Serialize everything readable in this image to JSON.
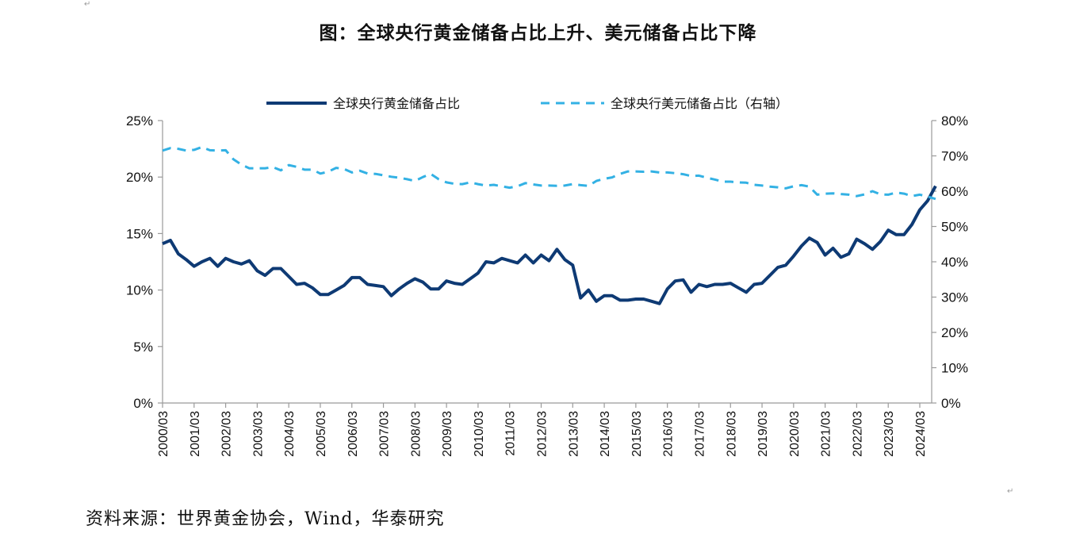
{
  "title": "图：全球央行黄金储备占比上升、美元储备占比下降",
  "source": "资料来源：世界黄金协会，Wind，华泰研究",
  "colors": {
    "gold_line": "#0e3a74",
    "usd_line": "#33b1e4",
    "axis": "#9a9a9a",
    "text": "#111111"
  },
  "chart_data": {
    "type": "line",
    "title": "",
    "xlabel": "",
    "ylabel": "",
    "ylabel_right": "",
    "x_tick_labels": [
      "2000/03",
      "2001/03",
      "2002/03",
      "2003/03",
      "2004/03",
      "2005/03",
      "2006/03",
      "2007/03",
      "2008/03",
      "2009/03",
      "2010/03",
      "2011/03",
      "2012/03",
      "2013/03",
      "2014/03",
      "2015/03",
      "2016/03",
      "2017/03",
      "2018/03",
      "2019/03",
      "2020/03",
      "2021/03",
      "2022/03",
      "2023/03",
      "2024/03"
    ],
    "y_left": {
      "ylim": [
        0,
        25
      ],
      "ticks": [
        "0%",
        "5%",
        "10%",
        "15%",
        "20%",
        "25%"
      ]
    },
    "y_right": {
      "ylim": [
        0,
        80
      ],
      "ticks": [
        "0%",
        "10%",
        "20%",
        "30%",
        "40%",
        "50%",
        "60%",
        "70%",
        "80%"
      ]
    },
    "grid": false,
    "legend_position": "top-center",
    "series": [
      {
        "name": "全球央行黄金储备占比",
        "axis": "left",
        "style": "solid",
        "x_start": "2000/03",
        "frequency": "quarterly",
        "values": [
          14.1,
          14.4,
          13.2,
          12.7,
          12.1,
          12.5,
          12.8,
          12.1,
          12.8,
          12.5,
          12.3,
          12.6,
          11.7,
          11.3,
          11.9,
          11.9,
          11.2,
          10.5,
          10.6,
          10.2,
          9.6,
          9.6,
          10.0,
          10.4,
          11.1,
          11.1,
          10.5,
          10.4,
          10.3,
          9.5,
          10.1,
          10.6,
          11.0,
          10.7,
          10.1,
          10.1,
          10.8,
          10.6,
          10.5,
          11.0,
          11.5,
          12.5,
          12.4,
          12.8,
          12.6,
          12.4,
          13.1,
          12.4,
          13.1,
          12.6,
          13.6,
          12.7,
          12.2,
          9.3,
          10.0,
          9.0,
          9.5,
          9.5,
          9.1,
          9.1,
          9.2,
          9.2,
          9.0,
          8.8,
          10.1,
          10.8,
          10.9,
          9.8,
          10.5,
          10.3,
          10.5,
          10.5,
          10.6,
          10.2,
          9.8,
          10.5,
          10.6,
          11.3,
          12.0,
          12.2,
          13.0,
          13.9,
          14.6,
          14.2,
          13.1,
          13.7,
          12.9,
          13.2,
          14.5,
          14.1,
          13.6,
          14.3,
          15.3,
          14.9,
          14.9,
          15.8,
          17.1,
          17.9,
          19.2
        ]
      },
      {
        "name": "全球央行美元储备占比（右轴）",
        "axis": "right",
        "style": "dashed",
        "x_start": "2000/03",
        "frequency": "quarterly",
        "values": [
          71.5,
          72.2,
          72.0,
          71.5,
          71.7,
          72.5,
          71.6,
          71.5,
          71.6,
          69.0,
          67.5,
          66.5,
          66.5,
          66.5,
          66.8,
          65.9,
          67.4,
          66.9,
          66.1,
          66.1,
          65.0,
          65.5,
          66.6,
          66.3,
          65.3,
          65.8,
          65.0,
          64.9,
          64.5,
          64.1,
          63.8,
          63.4,
          62.9,
          64.0,
          64.9,
          63.4,
          62.5,
          62.1,
          62.0,
          62.5,
          62.0,
          61.6,
          61.8,
          61.4,
          61.0,
          61.4,
          62.3,
          61.9,
          61.6,
          61.6,
          61.5,
          61.6,
          62.0,
          61.7,
          61.5,
          62.9,
          63.5,
          63.9,
          64.9,
          65.6,
          65.6,
          65.5,
          65.6,
          65.3,
          65.3,
          65.1,
          64.8,
          64.3,
          64.4,
          63.8,
          63.3,
          62.7,
          62.7,
          62.5,
          62.4,
          61.8,
          61.6,
          61.3,
          61.1,
          60.8,
          61.4,
          61.7,
          61.3,
          59.0,
          59.3,
          59.4,
          59.2,
          59.0,
          58.6,
          59.1,
          60.0,
          59.1,
          59.0,
          59.6,
          59.3,
          58.6,
          59.0,
          58.5,
          57.8
        ]
      }
    ]
  }
}
